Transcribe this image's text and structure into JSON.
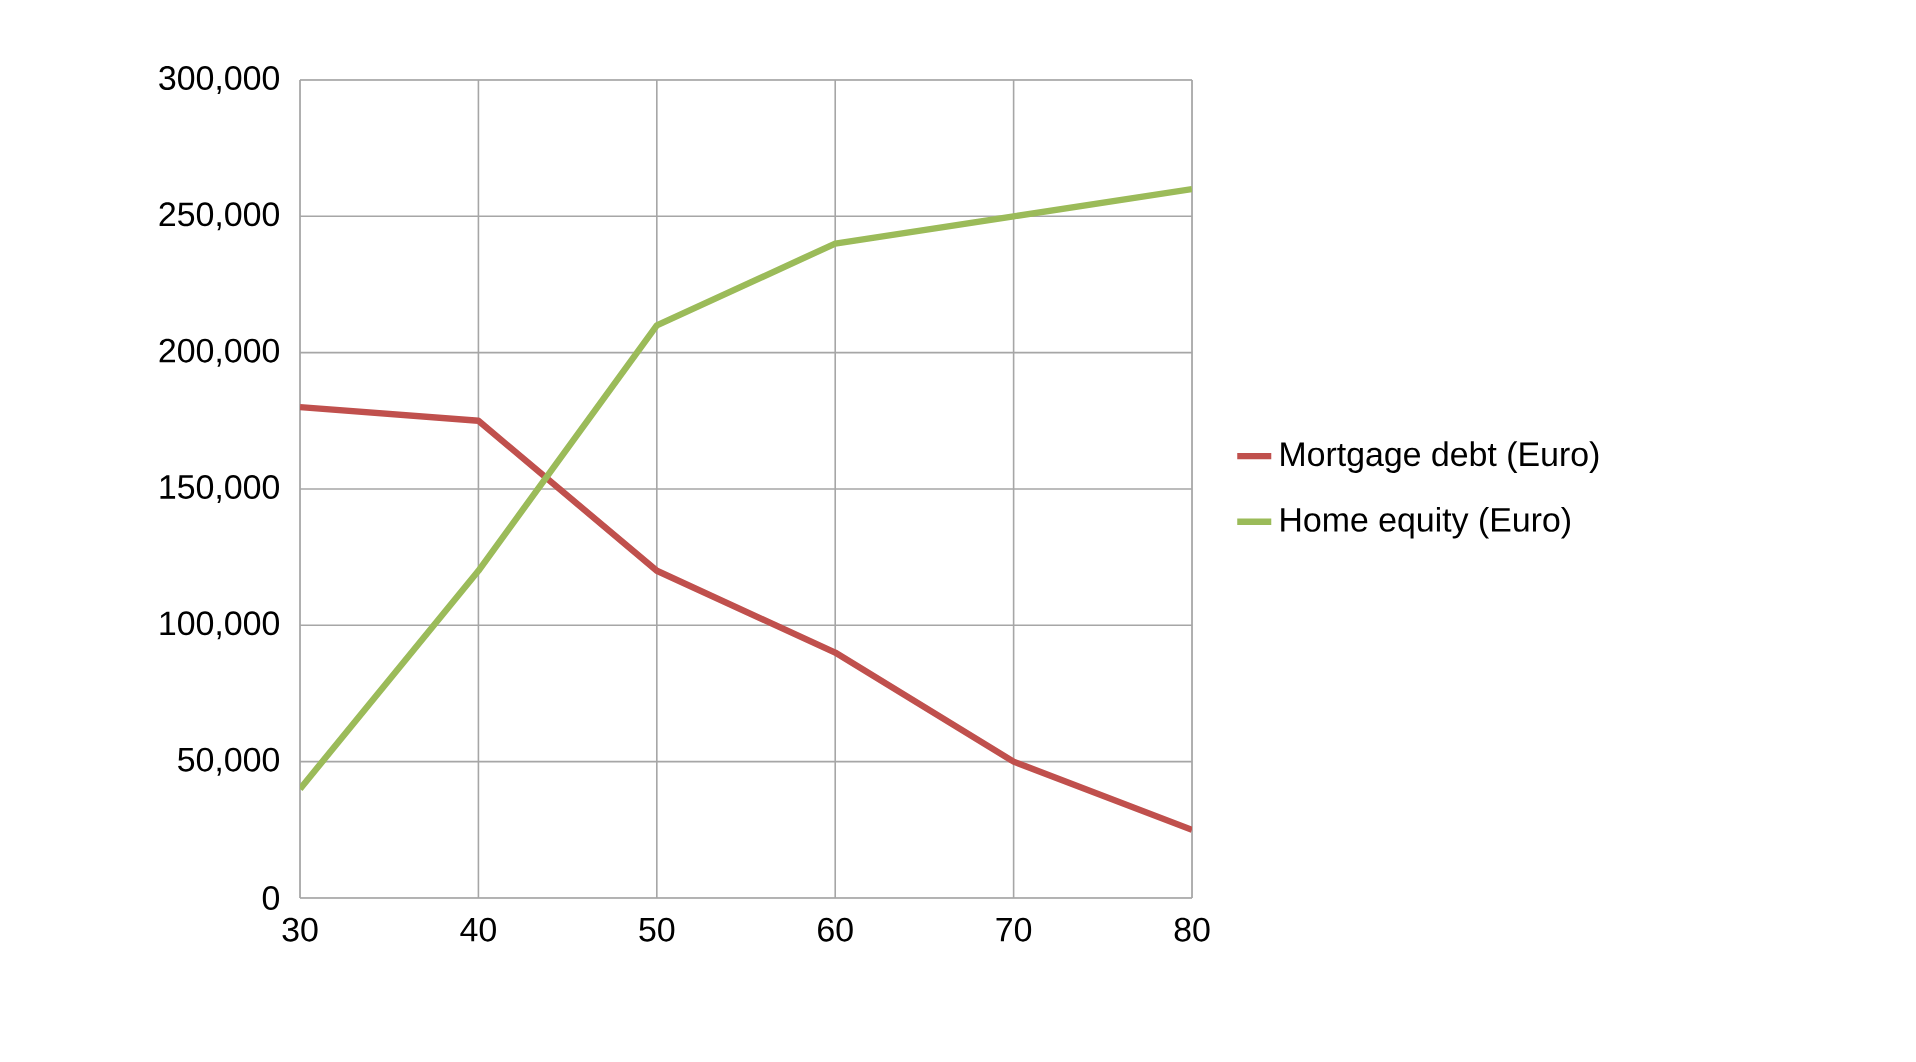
{
  "chart_data": {
    "type": "line",
    "x": [
      30,
      40,
      50,
      60,
      70,
      80
    ],
    "series": [
      {
        "name": "Mortgage debt (Euro)",
        "color": "#c0504d",
        "values": [
          180000,
          175000,
          120000,
          90000,
          50000,
          25000
        ]
      },
      {
        "name": "Home equity (Euro)",
        "color": "#9bbb59",
        "values": [
          40000,
          120000,
          210000,
          240000,
          250000,
          260000
        ]
      }
    ],
    "xlim": [
      30,
      80
    ],
    "xticks": [
      30,
      40,
      50,
      60,
      70,
      80
    ],
    "ylim": [
      0,
      300000
    ],
    "yticks": [
      0,
      {
        "value": 50000,
        "label": "50,000"
      },
      {
        "value": 100000,
        "label": "100,000"
      },
      {
        "value": 150000,
        "label": "150,000"
      },
      {
        "value": 200000,
        "label": "200,000"
      },
      {
        "value": 250000,
        "label": "250,000"
      },
      {
        "value": 300000,
        "label": "300,000"
      }
    ],
    "grid": true,
    "legend": "right",
    "marker": "none",
    "line_style": "solid"
  }
}
